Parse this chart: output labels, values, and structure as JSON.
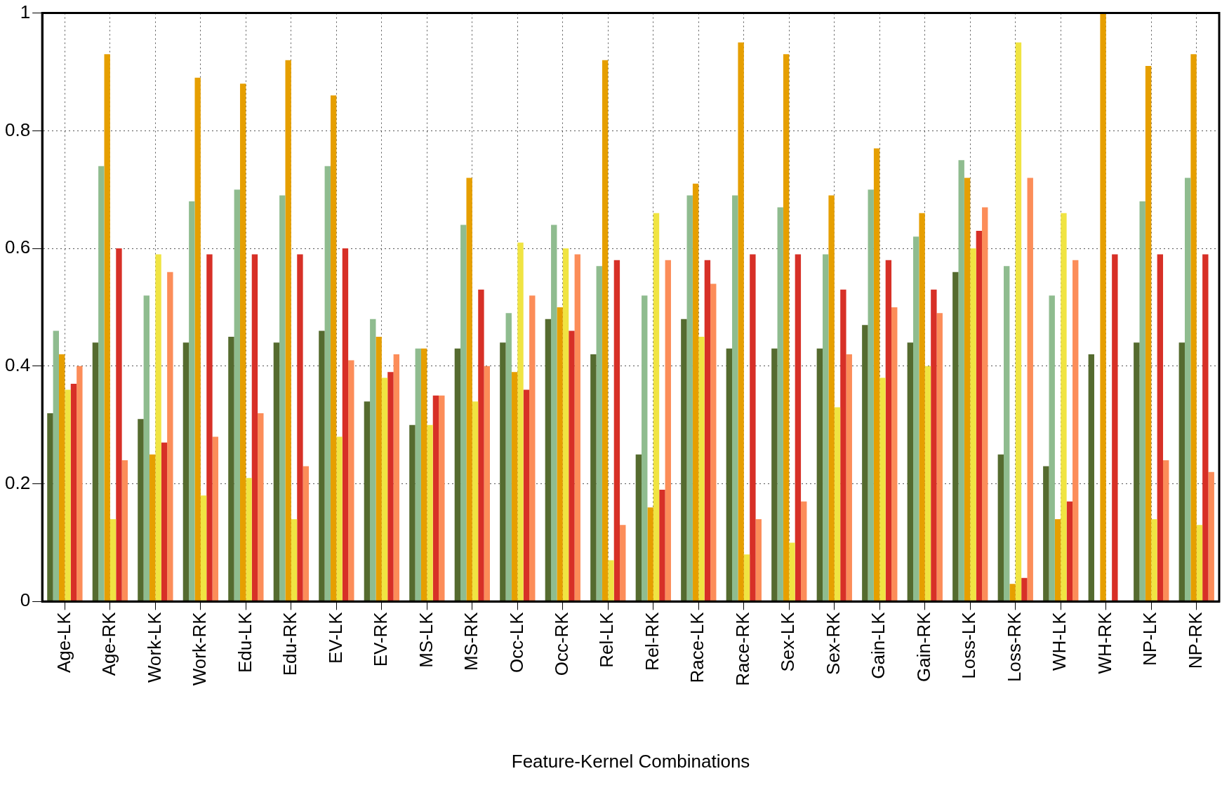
{
  "chart_data": {
    "type": "bar",
    "xlabel": "Feature-Kernel Combinations",
    "categories": [
      "Age-LK",
      "Age-RK",
      "Work-LK",
      "Work-RK",
      "Edu-LK",
      "Edu-RK",
      "EV-LK",
      "EV-RK",
      "MS-LK",
      "MS-RK",
      "Occ-LK",
      "Occ-RK",
      "Rel-LK",
      "Rel-RK",
      "Race-LK",
      "Race-RK",
      "Sex-LK",
      "Sex-RK",
      "Gain-LK",
      "Gain-RK",
      "Loss-LK",
      "Loss-RK",
      "WH-LK",
      "WH-RK",
      "NP-LK",
      "NP-RK"
    ],
    "series": [
      {
        "color": "#556b2f",
        "values": [
          0.32,
          0.44,
          0.31,
          0.44,
          0.45,
          0.44,
          0.46,
          0.34,
          0.3,
          0.43,
          0.44,
          0.48,
          0.42,
          0.25,
          0.48,
          0.43,
          0.43,
          0.43,
          0.47,
          0.44,
          0.56,
          0.25,
          0.23,
          0.42,
          0.44,
          0.44
        ]
      },
      {
        "color": "#8fbc8f",
        "values": [
          0.46,
          0.74,
          0.52,
          0.68,
          0.7,
          0.69,
          0.74,
          0.48,
          0.43,
          0.64,
          0.49,
          0.64,
          0.57,
          0.52,
          0.69,
          0.69,
          0.67,
          0.59,
          0.7,
          0.62,
          0.75,
          0.57,
          0.52,
          0,
          0.68,
          0.72
        ]
      },
      {
        "color": "#e69f00",
        "values": [
          0.42,
          0.93,
          0.25,
          0.89,
          0.88,
          0.92,
          0.86,
          0.45,
          0.43,
          0.72,
          0.39,
          0.5,
          0.92,
          0.16,
          0.71,
          0.95,
          0.93,
          0.69,
          0.77,
          0.66,
          0.72,
          0.03,
          0.14,
          1.0,
          0.91,
          0.93
        ]
      },
      {
        "color": "#f0e442",
        "values": [
          0.36,
          0.14,
          0.59,
          0.18,
          0.21,
          0.14,
          0.28,
          0.38,
          0.3,
          0.34,
          0.61,
          0.6,
          0.07,
          0.66,
          0.45,
          0.08,
          0.1,
          0.33,
          0.38,
          0.4,
          0.6,
          0.95,
          0.66,
          0,
          0.14,
          0.13
        ]
      },
      {
        "color": "#d73027",
        "values": [
          0.37,
          0.6,
          0.27,
          0.59,
          0.59,
          0.59,
          0.6,
          0.39,
          0.35,
          0.53,
          0.36,
          0.46,
          0.58,
          0.19,
          0.58,
          0.59,
          0.59,
          0.53,
          0.58,
          0.53,
          0.63,
          0.04,
          0.17,
          0.59,
          0.59,
          0.59
        ]
      },
      {
        "color": "#fc8d59",
        "values": [
          0.4,
          0.24,
          0.56,
          0.28,
          0.32,
          0.23,
          0.41,
          0.42,
          0.35,
          0.4,
          0.52,
          0.59,
          0.13,
          0.58,
          0.54,
          0.14,
          0.17,
          0.42,
          0.5,
          0.49,
          0.67,
          0.72,
          0.58,
          0,
          0.24,
          0.22
        ]
      }
    ],
    "ylim": [
      0,
      1
    ],
    "yticks": [
      0,
      0.2,
      0.4,
      0.6,
      0.8,
      1
    ],
    "grid": true,
    "legend": false
  }
}
